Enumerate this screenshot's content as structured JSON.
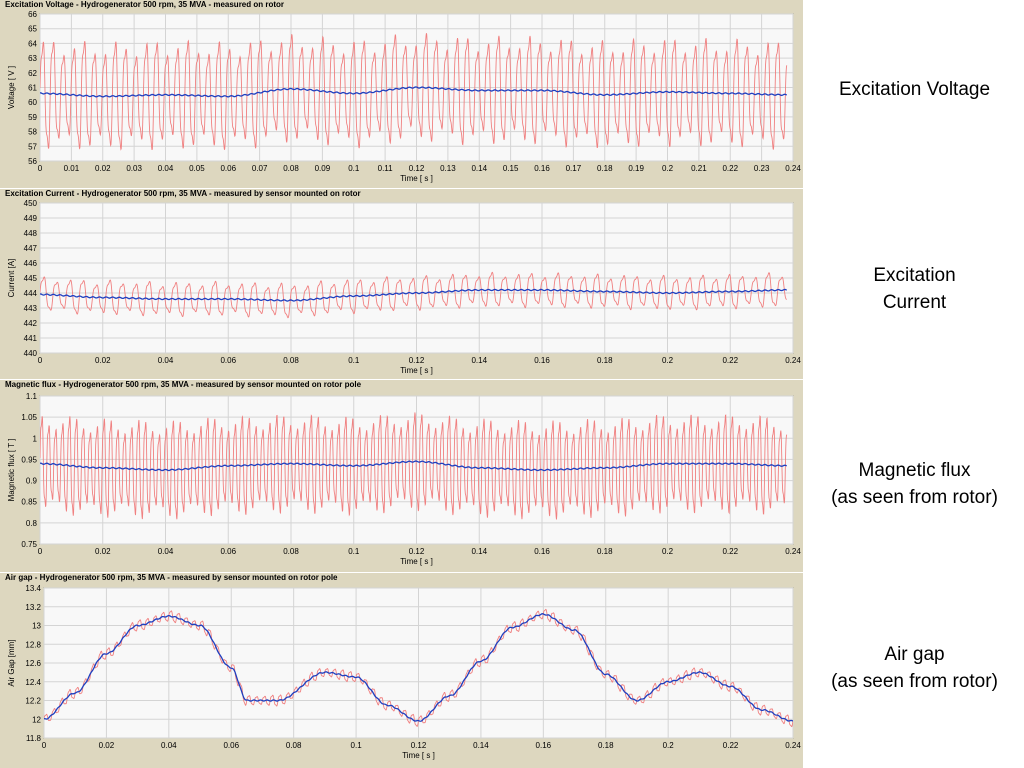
{
  "chart_data": [
    {
      "type": "line",
      "title": "Excitation Voltage - Hydrogenerator 500 rpm, 35 MVA - measured on rotor",
      "xlabel": "Time [ s ]",
      "ylabel": "Voltage [ V ]",
      "xlim": [
        0,
        0.24
      ],
      "ylim": [
        56,
        66
      ],
      "xticks": [
        "0",
        "0.01",
        "0.02",
        "0.03",
        "0.04",
        "0.05",
        "0.06",
        "0.07",
        "0.08",
        "0.09",
        "0.1",
        "0.11",
        "0.12",
        "0.13",
        "0.14",
        "0.15",
        "0.16",
        "0.17",
        "0.18",
        "0.19",
        "0.2",
        "0.21",
        "0.22",
        "0.23",
        "0.24"
      ],
      "yticks": [
        "56",
        "57",
        "58",
        "59",
        "60",
        "61",
        "62",
        "63",
        "64",
        "65",
        "66"
      ],
      "grid": true,
      "series": [
        {
          "role": "raw",
          "color": "#f08080",
          "oscillation_period_s": 0.0033,
          "amplitude": 3.8,
          "center": {
            "x": [
              0,
              0.02,
              0.04,
              0.06,
              0.08,
              0.1,
              0.12,
              0.14,
              0.16,
              0.18,
              0.2,
              0.22,
              0.238
            ],
            "y": [
              60.6,
              60.4,
              60.5,
              60.4,
              60.9,
              60.6,
              61.0,
              60.8,
              60.8,
              60.5,
              60.7,
              60.6,
              60.5
            ]
          }
        },
        {
          "role": "filtered",
          "color": "#1f3fbf",
          "x": [
            0,
            0.02,
            0.04,
            0.06,
            0.08,
            0.1,
            0.12,
            0.14,
            0.16,
            0.18,
            0.2,
            0.22,
            0.238
          ],
          "y": [
            60.6,
            60.4,
            60.5,
            60.4,
            60.9,
            60.6,
            61.0,
            60.8,
            60.8,
            60.5,
            60.7,
            60.6,
            60.5
          ]
        }
      ]
    },
    {
      "type": "line",
      "title": "Excitation Current - Hydrogenerator 500 rpm, 35 MVA - measured by sensor mounted on rotor",
      "xlabel": "Time [ s ]",
      "ylabel": "Current [A]",
      "xlim": [
        0,
        0.24
      ],
      "ylim": [
        440,
        450
      ],
      "xticks": [
        "0",
        "0.02",
        "0.04",
        "0.06",
        "0.08",
        "0.1",
        "0.12",
        "0.14",
        "0.16",
        "0.18",
        "0.2",
        "0.22",
        "0.24"
      ],
      "yticks": [
        "440",
        "441",
        "442",
        "443",
        "444",
        "445",
        "446",
        "447",
        "448",
        "449",
        "450"
      ],
      "grid": true,
      "series": [
        {
          "role": "raw",
          "color": "#f08080",
          "oscillation_period_s": 0.0042,
          "amplitude": 1.2,
          "center": {
            "x": [
              0,
              0.02,
              0.04,
              0.06,
              0.08,
              0.1,
              0.12,
              0.14,
              0.16,
              0.18,
              0.2,
              0.22,
              0.238
            ],
            "y": [
              443.9,
              443.7,
              443.6,
              443.6,
              443.5,
              443.8,
              444.0,
              444.2,
              444.2,
              444.1,
              444.0,
              444.1,
              444.2
            ]
          }
        },
        {
          "role": "filtered",
          "color": "#1f3fbf",
          "x": [
            0,
            0.02,
            0.04,
            0.06,
            0.08,
            0.1,
            0.12,
            0.14,
            0.16,
            0.18,
            0.2,
            0.22,
            0.238
          ],
          "y": [
            443.9,
            443.7,
            443.6,
            443.6,
            443.5,
            443.8,
            444.0,
            444.2,
            444.2,
            444.1,
            444.0,
            444.1,
            444.2
          ]
        }
      ]
    },
    {
      "type": "line",
      "title": "Magnetic flux - Hydrogenerator 500 rpm, 35 MVA - measured by sensor mounted on rotor pole",
      "xlabel": "Time [ s ]",
      "ylabel": "Magnetic flux [ T ]",
      "xlim": [
        0,
        0.24
      ],
      "ylim": [
        0.75,
        1.1
      ],
      "xticks": [
        "0",
        "0.02",
        "0.04",
        "0.06",
        "0.08",
        "0.1",
        "0.12",
        "0.14",
        "0.16",
        "0.18",
        "0.2",
        "0.22",
        "0.24"
      ],
      "yticks": [
        "0.75",
        "0.8",
        "0.85",
        "0.9",
        "0.95",
        "1",
        "1.05",
        "1.1"
      ],
      "grid": true,
      "series": [
        {
          "role": "raw",
          "color": "#f08080",
          "oscillation_period_s": 0.0022,
          "amplitude": 0.12,
          "center": {
            "x": [
              0,
              0.02,
              0.04,
              0.06,
              0.08,
              0.1,
              0.12,
              0.14,
              0.16,
              0.18,
              0.2,
              0.22,
              0.238
            ],
            "y": [
              0.94,
              0.93,
              0.925,
              0.935,
              0.94,
              0.935,
              0.945,
              0.93,
              0.925,
              0.93,
              0.94,
              0.94,
              0.935
            ]
          }
        },
        {
          "role": "filtered",
          "color": "#1f3fbf",
          "x": [
            0,
            0.02,
            0.04,
            0.06,
            0.08,
            0.1,
            0.12,
            0.14,
            0.16,
            0.18,
            0.2,
            0.22,
            0.238
          ],
          "y": [
            0.94,
            0.93,
            0.925,
            0.935,
            0.94,
            0.935,
            0.945,
            0.93,
            0.925,
            0.93,
            0.94,
            0.94,
            0.935
          ]
        }
      ]
    },
    {
      "type": "line",
      "title": "Air gap - Hydrogenerator 500 rpm, 35 MVA - measured by sensor mounted on rotor pole",
      "xlabel": "Time [ s ]",
      "ylabel": "Air Gap [mm]",
      "xlim": [
        0,
        0.24
      ],
      "ylim": [
        11.8,
        13.4
      ],
      "xticks": [
        "0",
        "0.02",
        "0.04",
        "0.06",
        "0.08",
        "0.1",
        "0.12",
        "0.14",
        "0.16",
        "0.18",
        "0.2",
        "0.22",
        "0.24"
      ],
      "yticks": [
        "11.8",
        "12",
        "12.2",
        "12.4",
        "12.6",
        "12.8",
        "13",
        "13.2",
        "13.4"
      ],
      "grid": true,
      "series": [
        {
          "role": "raw",
          "color": "#f08080",
          "oscillation_period_s": 0.0025,
          "amplitude": 0.06,
          "center": {
            "x": [
              0,
              0.01,
              0.02,
              0.03,
              0.04,
              0.05,
              0.06,
              0.065,
              0.075,
              0.09,
              0.1,
              0.11,
              0.12,
              0.13,
              0.14,
              0.15,
              0.16,
              0.17,
              0.18,
              0.19,
              0.2,
              0.21,
              0.22,
              0.23,
              0.24
            ],
            "y": [
              12.0,
              12.28,
              12.7,
              13.0,
              13.1,
              13.0,
              12.55,
              12.2,
              12.2,
              12.5,
              12.45,
              12.15,
              11.98,
              12.25,
              12.62,
              12.98,
              13.12,
              12.95,
              12.48,
              12.2,
              12.4,
              12.5,
              12.35,
              12.1,
              11.98
            ]
          }
        },
        {
          "role": "filtered",
          "color": "#1f3fbf",
          "x": [
            0,
            0.01,
            0.02,
            0.03,
            0.04,
            0.05,
            0.06,
            0.065,
            0.075,
            0.09,
            0.1,
            0.11,
            0.12,
            0.13,
            0.14,
            0.15,
            0.16,
            0.17,
            0.18,
            0.19,
            0.2,
            0.21,
            0.22,
            0.23,
            0.24
          ],
          "y": [
            12.0,
            12.28,
            12.7,
            13.0,
            13.1,
            13.0,
            12.55,
            12.2,
            12.2,
            12.5,
            12.45,
            12.15,
            11.98,
            12.25,
            12.62,
            12.98,
            13.12,
            12.95,
            12.48,
            12.2,
            12.4,
            12.5,
            12.35,
            12.1,
            11.98
          ]
        }
      ]
    }
  ],
  "side_labels": [
    "Excitation Voltage",
    "Excitation\nCurrent",
    "Magnetic flux\n(as seen from rotor)",
    "Air gap\n(as seen from rotor)"
  ]
}
